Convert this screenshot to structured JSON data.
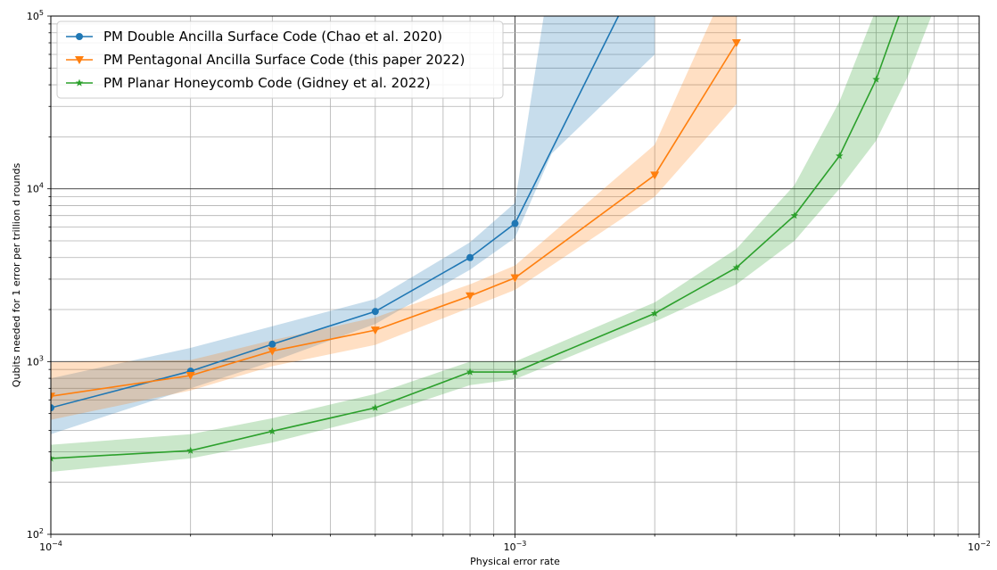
{
  "chart_data": {
    "type": "line",
    "title": "",
    "xlabel": "Physical error rate",
    "ylabel": "Qubits needed for 1 error per trillion d rounds",
    "x_scale": "log",
    "y_scale": "log",
    "xlim": [
      0.0001,
      0.01
    ],
    "ylim": [
      100,
      100000
    ],
    "grid": true,
    "legend_position": "top-left",
    "x_ticks": [
      {
        "value": 0.0001,
        "base": "10",
        "exp": "−4"
      },
      {
        "value": 0.001,
        "base": "10",
        "exp": "−3"
      },
      {
        "value": 0.01,
        "base": "10",
        "exp": "−2"
      }
    ],
    "y_ticks": [
      {
        "value": 100,
        "base": "10",
        "exp": "2"
      },
      {
        "value": 1000,
        "base": "10",
        "exp": "3"
      },
      {
        "value": 10000,
        "base": "10",
        "exp": "4"
      },
      {
        "value": 100000,
        "base": "10",
        "exp": "5"
      }
    ],
    "series": [
      {
        "name": "PM Double Ancilla Surface Code (Chao et al. 2020)",
        "color": "#1f77b4",
        "marker": "circle",
        "x": [
          0.0001,
          0.0002,
          0.0003,
          0.0005,
          0.0008,
          0.001,
          0.0017
        ],
        "y": [
          540,
          880,
          1260,
          1950,
          4000,
          6300,
          110000
        ],
        "lower": [
          380,
          700,
          1000,
          1650,
          3400,
          5200,
          50000
        ],
        "upper": [
          800,
          1200,
          1600,
          2300,
          4900,
          8300,
          200000
        ],
        "band_x": [
          0.0001,
          0.0002,
          0.0003,
          0.0005,
          0.0008,
          0.001,
          0.0012,
          0.002
        ],
        "band_lower": [
          380,
          700,
          1000,
          1650,
          3400,
          5200,
          16000,
          60000
        ],
        "band_upper": [
          800,
          1200,
          1600,
          2300,
          4900,
          8300,
          200000,
          200000
        ]
      },
      {
        "name": "PM Pentagonal Ancilla Surface Code (this paper 2022)",
        "color": "#ff7f0e",
        "marker": "triangle-down",
        "x": [
          0.0001,
          0.0002,
          0.0003,
          0.0005,
          0.0008,
          0.001,
          0.002,
          0.003
        ],
        "y": [
          630,
          830,
          1150,
          1520,
          2400,
          3050,
          12000,
          70000
        ],
        "band_x": [
          0.0001,
          0.0002,
          0.0003,
          0.0005,
          0.0008,
          0.001,
          0.002,
          0.003
        ],
        "band_lower": [
          460,
          680,
          940,
          1250,
          2050,
          2600,
          9000,
          31000
        ],
        "band_upper": [
          990,
          1020,
          1330,
          1800,
          2800,
          3600,
          18000,
          200000
        ]
      },
      {
        "name": "PM Planar Honeycomb Code (Gidney et al. 2022)",
        "color": "#2ca02c",
        "marker": "star",
        "x": [
          0.0001,
          0.0002,
          0.0003,
          0.0005,
          0.0008,
          0.001,
          0.002,
          0.003,
          0.004,
          0.005,
          0.006,
          0.0068
        ],
        "y": [
          275,
          305,
          395,
          540,
          870,
          870,
          1900,
          3500,
          7000,
          15500,
          43000,
          110000
        ],
        "band_x": [
          0.0001,
          0.0002,
          0.0003,
          0.0005,
          0.0008,
          0.001,
          0.002,
          0.003,
          0.004,
          0.005,
          0.006,
          0.007,
          0.008
        ],
        "band_lower": [
          230,
          275,
          340,
          480,
          730,
          790,
          1700,
          2800,
          5000,
          10000,
          19000,
          44000,
          110000
        ],
        "band_upper": [
          330,
          380,
          470,
          650,
          1000,
          1000,
          2200,
          4500,
          10500,
          32000,
          110000,
          200000,
          200000
        ]
      }
    ]
  }
}
